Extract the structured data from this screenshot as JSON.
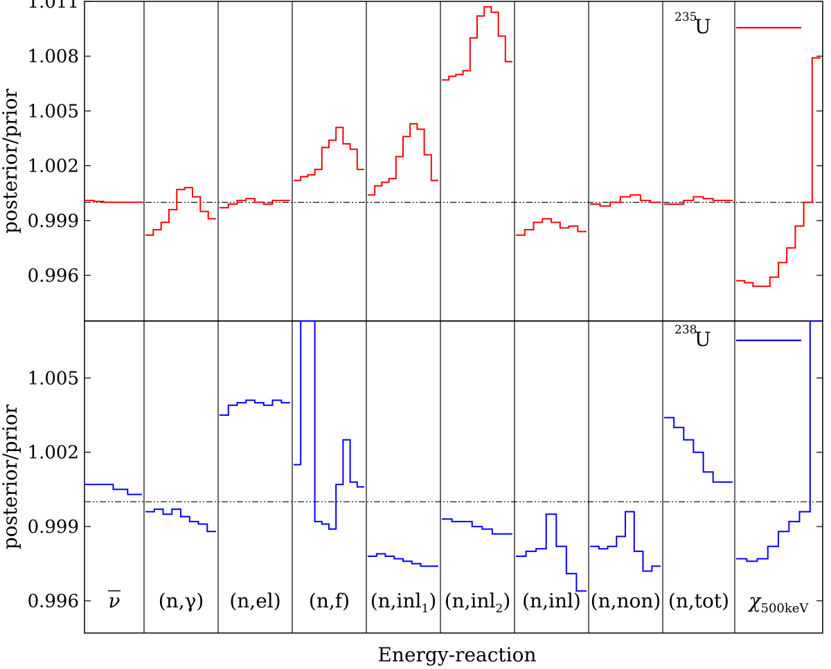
{
  "chart_data": [
    {
      "type": "line",
      "ylabel": "posterior/prior",
      "ylim": [
        0.9935,
        1.011
      ],
      "yticks": [
        "0.996",
        "0.999",
        "1.002",
        "1.005",
        "1.008",
        "1.011"
      ],
      "reference_line": 1.0,
      "legend": {
        "label_sup": "235",
        "label": "U",
        "color": "#ff0000",
        "placement": "top-right"
      },
      "series": [
        {
          "panel": 0,
          "values": [
            1.0001,
            1.00005,
            1.0,
            1.0,
            1.0,
            1.0
          ]
        },
        {
          "panel": 1,
          "values": [
            0.9982,
            0.9985,
            0.9989,
            0.9996,
            1.0007,
            1.0008,
            1.0003,
            0.9995,
            0.9991
          ]
        },
        {
          "panel": 2,
          "values": [
            0.9997,
            0.9999,
            1.0001,
            1.0002,
            1.0,
            0.9999,
            1.0001,
            1.0001
          ]
        },
        {
          "panel": 3,
          "values": [
            1.0012,
            1.0014,
            1.0015,
            1.0018,
            1.003,
            1.0034,
            1.0041,
            1.0032,
            1.0029,
            1.0018
          ]
        },
        {
          "panel": 4,
          "values": [
            1.0004,
            1.0009,
            1.0011,
            1.0013,
            1.0025,
            1.0036,
            1.0043,
            1.004,
            1.0026,
            1.0012
          ]
        },
        {
          "panel": 5,
          "values": [
            1.0067,
            1.0069,
            1.007,
            1.0072,
            1.009,
            1.0102,
            1.0107,
            1.0104,
            1.0091,
            1.0077
          ]
        },
        {
          "panel": 6,
          "values": [
            0.9982,
            0.9985,
            0.9989,
            0.9991,
            0.9989,
            0.9986,
            0.9987,
            0.9984
          ]
        },
        {
          "panel": 7,
          "values": [
            0.9999,
            0.9998,
            1.0,
            1.0003,
            1.0004,
            1.0001,
            1.0
          ]
        },
        {
          "panel": 8,
          "values": [
            0.9999,
            0.9999,
            1.0001,
            1.0003,
            1.0002,
            1.0001,
            1.0001
          ]
        },
        {
          "panel": 9,
          "values": [
            0.9957,
            0.9956,
            0.9954,
            0.9954,
            0.9959,
            0.9967,
            0.9975,
            0.9987,
            1.0,
            1.0079
          ]
        }
      ]
    },
    {
      "type": "line",
      "ylabel": "posterior/prior",
      "xlabel": "Energy-reaction",
      "ylim": [
        0.9947,
        1.0073
      ],
      "yticks": [
        "0.996",
        "0.999",
        "1.002",
        "1.005"
      ],
      "reference_line": 1.0,
      "legend": {
        "label_sup": "238",
        "label": "U",
        "color": "#0000ff",
        "placement": "top-right"
      },
      "series": [
        {
          "panel": 0,
          "values": [
            1.0007,
            1.0007,
            1.0005,
            1.0003
          ]
        },
        {
          "panel": 1,
          "values": [
            0.9996,
            0.9997,
            0.9995,
            0.9997,
            0.9994,
            0.9992,
            0.9991,
            0.9988
          ]
        },
        {
          "panel": 2,
          "values": [
            1.0035,
            1.0039,
            1.004,
            1.0041,
            1.004,
            1.0039,
            1.0041,
            1.004
          ]
        },
        {
          "panel": 3,
          "values": [
            1.0015,
            1.0073,
            1.0073,
            0.9992,
            0.9991,
            0.9989,
            1.0007,
            1.0025,
            1.0008,
            1.0006
          ]
        },
        {
          "panel": 4,
          "values": [
            0.9978,
            0.9979,
            0.9978,
            0.9977,
            0.9976,
            0.9975,
            0.9974,
            0.9974
          ]
        },
        {
          "panel": 5,
          "values": [
            0.9993,
            0.9992,
            0.9992,
            0.999,
            0.9989,
            0.9987,
            0.9987
          ]
        },
        {
          "panel": 6,
          "values": [
            0.9978,
            0.998,
            0.9981,
            0.9995,
            0.9982,
            0.9971,
            0.9964
          ]
        },
        {
          "panel": 7,
          "values": [
            0.9982,
            0.9981,
            0.9982,
            0.9986,
            0.9996,
            0.998,
            0.9972,
            0.9974
          ]
        },
        {
          "panel": 8,
          "values": [
            1.0034,
            1.003,
            1.0025,
            1.002,
            1.0012,
            1.0008,
            1.0008
          ]
        },
        {
          "panel": 9,
          "values": [
            0.9977,
            0.9976,
            0.9977,
            0.9982,
            0.9988,
            0.9992,
            0.9996,
            1.0073
          ]
        }
      ]
    }
  ],
  "categories": [
    {
      "main": "ν",
      "over": true,
      "sub": ""
    },
    {
      "main": "(n,γ)",
      "over": false,
      "sub": ""
    },
    {
      "main": "(n,el)",
      "over": false,
      "sub": ""
    },
    {
      "main": "(n,f)",
      "over": false,
      "sub": ""
    },
    {
      "main": "(n,inl",
      "over": false,
      "sub": "1",
      "close": ")"
    },
    {
      "main": "(n,inl",
      "over": false,
      "sub": "2",
      "close": ")"
    },
    {
      "main": "(n,inl)",
      "over": false,
      "sub": ""
    },
    {
      "main": "(n,non)",
      "over": false,
      "sub": ""
    },
    {
      "main": "(n,tot)",
      "over": false,
      "sub": ""
    },
    {
      "main": "χ",
      "over": false,
      "sub": "500keV"
    }
  ]
}
